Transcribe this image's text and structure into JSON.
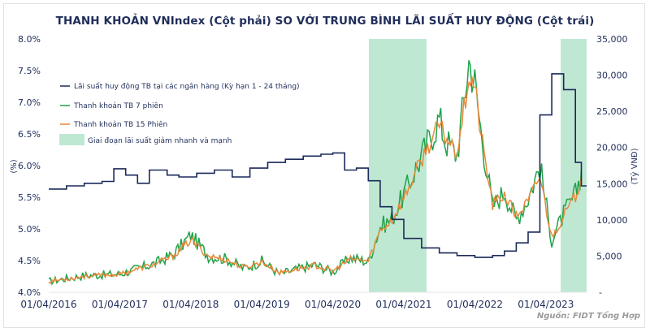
{
  "chart_data": {
    "type": "line",
    "title": "THANH KHOẢN VNIndex (Cột phải) SO VỚI TRUNG BÌNH LÃI SUẤT HUY ĐỘNG (Cột trái)",
    "xlabel": "",
    "ylabel_left": "(%)",
    "ylabel_right": "(Tỷ VNĐ)",
    "ylim_left": [
      4.0,
      8.0
    ],
    "ylim_right": [
      0,
      35000
    ],
    "yticks_left": [
      "4.0%",
      "4.5%",
      "5.0%",
      "5.5%",
      "6.0%",
      "6.5%",
      "7.0%",
      "7.5%",
      "8.0%"
    ],
    "yticks_right": [
      "-",
      "5,000",
      "10,000",
      "15,000",
      "20,000",
      "25,000",
      "30,000",
      "35,000"
    ],
    "xticks": [
      "01/04/2016",
      "01/04/2017",
      "01/04/2018",
      "01/04/2019",
      "01/04/2020",
      "01/04/2021",
      "01/04/2022",
      "01/04/2023"
    ],
    "grid": false,
    "legend_position": "upper-left inside",
    "legend": [
      {
        "label": "Lãi suất huy động TB tại các ngân hàng (Kỳ hạn 1 - 24 tháng)",
        "color": "#1b2a5a",
        "kind": "line"
      },
      {
        "label": "Thanh khoản TB 7 phiên",
        "color": "#1fa34a",
        "kind": "line"
      },
      {
        "label": "Thanh khoản TB 15 Phiên",
        "color": "#e8893a",
        "kind": "line"
      },
      {
        "label": "Giai đoạn lãi suất giảm nhanh và mạnh",
        "color": "#bfe8d3",
        "kind": "area"
      }
    ],
    "shaded_periods": [
      {
        "start": "2020-09",
        "end": "2021-06"
      },
      {
        "start": "2023-06",
        "end": "2023-10"
      }
    ],
    "series": [
      {
        "name": "Lãi suất huy động TB tại các ngân hàng (Kỳ hạn 1 - 24 tháng)",
        "axis": "left",
        "unit": "%",
        "x": [
          "2016-04",
          "2016-07",
          "2016-10",
          "2017-01",
          "2017-03",
          "2017-05",
          "2017-07",
          "2017-09",
          "2017-12",
          "2018-02",
          "2018-05",
          "2018-08",
          "2018-11",
          "2019-02",
          "2019-05",
          "2019-08",
          "2019-11",
          "2020-02",
          "2020-04",
          "2020-06",
          "2020-08",
          "2020-10",
          "2020-12",
          "2021-02",
          "2021-04",
          "2021-07",
          "2021-10",
          "2022-01",
          "2022-04",
          "2022-07",
          "2022-09",
          "2022-11",
          "2023-01",
          "2023-03",
          "2023-05",
          "2023-07",
          "2023-09",
          "2023-10"
        ],
        "values": [
          5.63,
          5.68,
          5.72,
          5.75,
          5.95,
          5.85,
          5.72,
          5.93,
          5.85,
          5.82,
          5.88,
          5.93,
          5.82,
          5.96,
          6.05,
          6.1,
          6.15,
          6.18,
          6.2,
          5.93,
          5.96,
          5.76,
          5.35,
          5.15,
          4.85,
          4.7,
          4.62,
          4.58,
          4.55,
          4.58,
          4.65,
          4.78,
          4.95,
          6.8,
          7.45,
          7.2,
          6.05,
          5.68
        ]
      },
      {
        "name": "Thanh khoản TB 7 phiên",
        "axis": "right",
        "unit": "Tỷ VNĐ",
        "x": [
          "2016-04",
          "2016-10",
          "2017-04",
          "2017-10",
          "2018-01",
          "2018-04",
          "2018-07",
          "2018-10",
          "2019-01",
          "2019-04",
          "2019-07",
          "2019-10",
          "2020-01",
          "2020-04",
          "2020-07",
          "2020-10",
          "2020-12",
          "2021-02",
          "2021-04",
          "2021-06",
          "2021-08",
          "2021-10",
          "2021-11",
          "2022-01",
          "2022-03",
          "2022-04",
          "2022-05",
          "2022-07",
          "2022-09",
          "2022-11",
          "2023-01",
          "2023-03",
          "2023-05",
          "2023-07",
          "2023-09",
          "2023-10"
        ],
        "values": [
          1500,
          2300,
          2500,
          4000,
          5200,
          7900,
          5000,
          4600,
          3300,
          4300,
          2500,
          3200,
          3800,
          2800,
          4800,
          4200,
          9000,
          10200,
          13500,
          17000,
          20500,
          24000,
          21000,
          19000,
          32000,
          29000,
          22500,
          11800,
          14000,
          10000,
          13000,
          17500,
          7200,
          10700,
          13500,
          16800
        ]
      },
      {
        "name": "Thanh khoản TB 15 Phiên",
        "axis": "right",
        "unit": "Tỷ VNĐ",
        "x": [
          "2016-04",
          "2016-10",
          "2017-04",
          "2017-10",
          "2018-01",
          "2018-04",
          "2018-07",
          "2018-10",
          "2019-01",
          "2019-04",
          "2019-07",
          "2019-10",
          "2020-01",
          "2020-04",
          "2020-07",
          "2020-10",
          "2020-12",
          "2021-02",
          "2021-04",
          "2021-06",
          "2021-08",
          "2021-10",
          "2021-11",
          "2022-01",
          "2022-03",
          "2022-04",
          "2022-05",
          "2022-07",
          "2022-09",
          "2022-11",
          "2023-01",
          "2023-03",
          "2023-05",
          "2023-07",
          "2023-09",
          "2023-10"
        ],
        "values": [
          1500,
          2200,
          2500,
          3900,
          5000,
          7200,
          5000,
          4500,
          3400,
          4200,
          2700,
          3200,
          3700,
          2900,
          4600,
          4300,
          8500,
          10000,
          13000,
          16500,
          20000,
          23000,
          21500,
          19500,
          30000,
          28500,
          22000,
          12000,
          13500,
          10500,
          12500,
          16000,
          7600,
          10500,
          13200,
          16000
        ]
      }
    ]
  },
  "header": {
    "title": "THANH KHOẢN VNIndex (Cột phải) SO VỚI TRUNG BÌNH LÃI SUẤT HUY ĐỘNG (Cột trái)"
  },
  "footer": {
    "source": "Nguồn: FIDT Tổng Hợp"
  },
  "colors": {
    "rate_line": "#1b2a5a",
    "liq7_line": "#1fa34a",
    "liq15_line": "#e8893a",
    "shade": "#bfe8d3",
    "text": "#1f2d5a"
  }
}
